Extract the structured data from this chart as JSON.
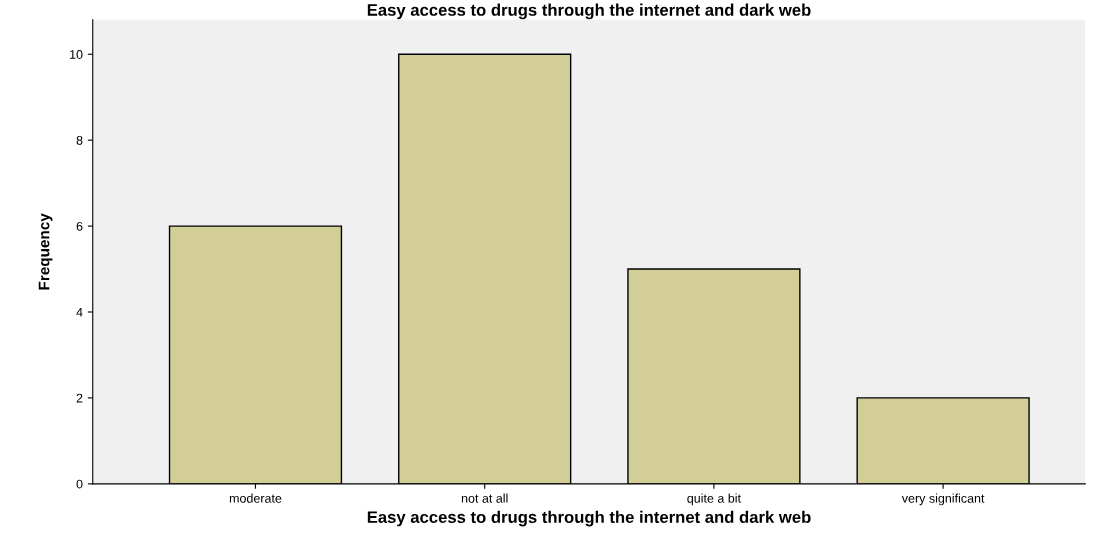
{
  "chart_data": {
    "type": "bar",
    "title": "Easy access to drugs through the internet and dark web",
    "xlabel": "Easy access to drugs through the internet and dark web",
    "ylabel": "Frequency",
    "categories": [
      "moderate",
      "not at all",
      "quite a bit",
      "very significant"
    ],
    "values": [
      6,
      10,
      5,
      2
    ],
    "color": "#d3ce97",
    "ylim": [
      0,
      10.8
    ],
    "yticks": [
      0,
      2,
      4,
      6,
      8,
      10
    ],
    "grid": false,
    "legend": false
  }
}
